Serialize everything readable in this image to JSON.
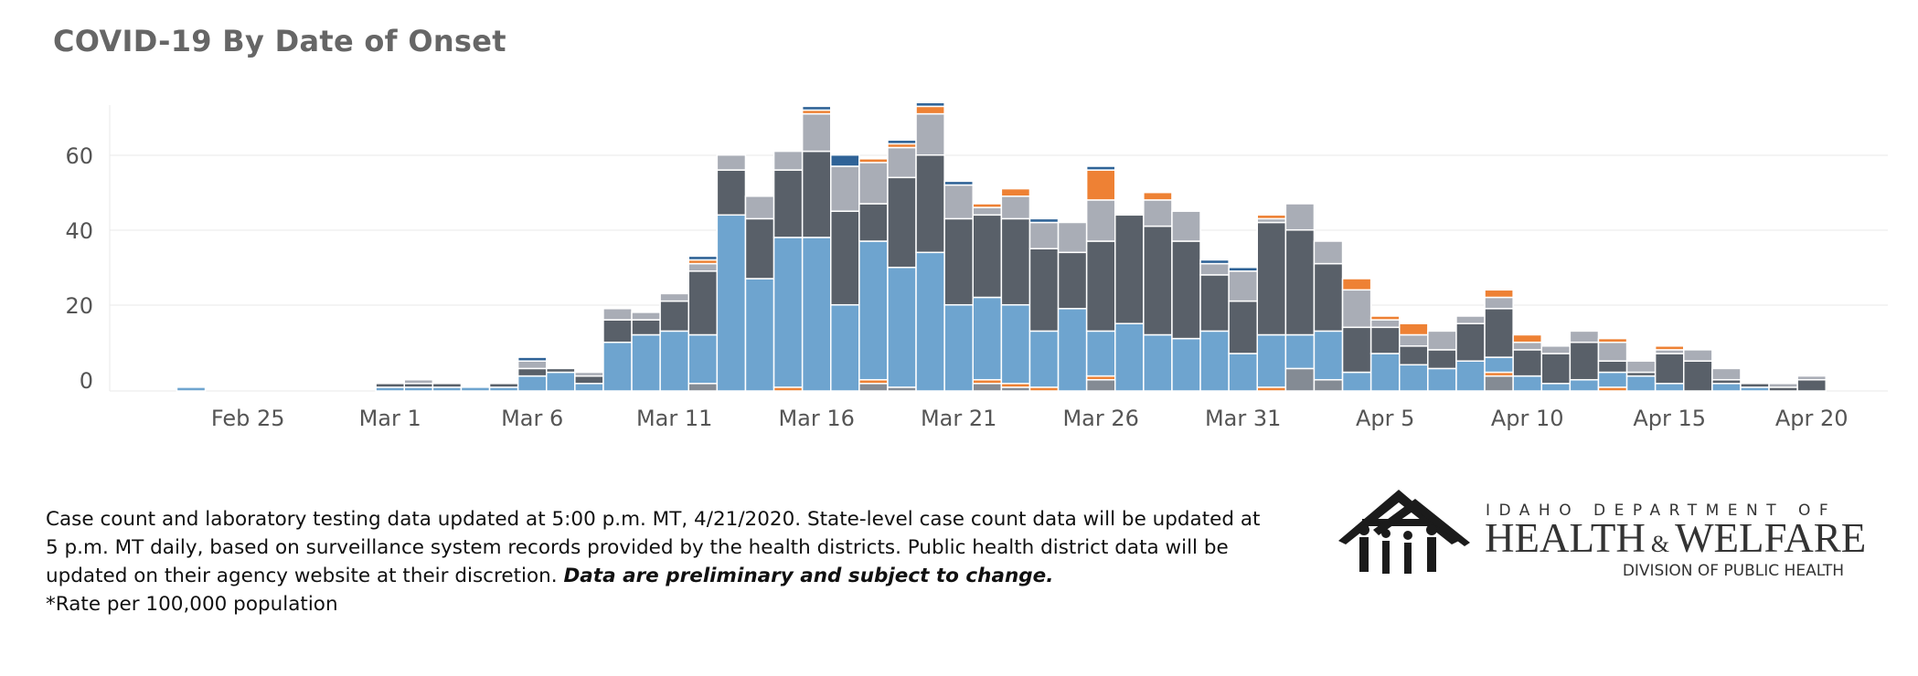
{
  "title": "COVID-19 By Date of Onset",
  "colors": {
    "c1": "#6ea4cf",
    "c2": "#596069",
    "c3": "#a9adb6",
    "c4": "#ee8134",
    "c5": "#2f6397",
    "c6": "#848b94",
    "grid": "#eaeaea",
    "bar_edge": "#ffffff"
  },
  "chart_data": {
    "type": "bar",
    "stacked": true,
    "title": "COVID-19 By Date of Onset",
    "xlabel": "",
    "ylabel": "",
    "ylim": [
      -5,
      75
    ],
    "yticks": [
      0,
      20,
      40,
      60
    ],
    "grid": true,
    "legend": "none",
    "x_tick_labels": [
      "Feb 25",
      "Mar 1",
      "Mar 6",
      "Mar 11",
      "Mar 16",
      "Mar 21",
      "Mar 26",
      "Mar 31",
      "Apr 5",
      "Apr 10",
      "Apr 15",
      "Apr 20"
    ],
    "categories": [
      "Feb 23",
      "Feb 24",
      "Feb 25",
      "Feb 26",
      "Feb 27",
      "Feb 28",
      "Feb 29",
      "Mar 1",
      "Mar 2",
      "Mar 3",
      "Mar 4",
      "Mar 5",
      "Mar 6",
      "Mar 7",
      "Mar 8",
      "Mar 9",
      "Mar 10",
      "Mar 11",
      "Mar 12",
      "Mar 13",
      "Mar 14",
      "Mar 15",
      "Mar 16",
      "Mar 17",
      "Mar 18",
      "Mar 19",
      "Mar 20",
      "Mar 21",
      "Mar 22",
      "Mar 23",
      "Mar 24",
      "Mar 25",
      "Mar 26",
      "Mar 27",
      "Mar 28",
      "Mar 29",
      "Mar 30",
      "Mar 31",
      "Apr 1",
      "Apr 2",
      "Apr 3",
      "Apr 4",
      "Apr 5",
      "Apr 6",
      "Apr 7",
      "Apr 8",
      "Apr 9",
      "Apr 10",
      "Apr 11",
      "Apr 12",
      "Apr 13",
      "Apr 14",
      "Apr 15",
      "Apr 16",
      "Apr 17",
      "Apr 18",
      "Apr 19",
      "Apr 20"
    ],
    "series": [
      {
        "color": "c6",
        "values": [
          0,
          0,
          0,
          0,
          0,
          0,
          0,
          0,
          0,
          0,
          0,
          0,
          0,
          0,
          0,
          0,
          0,
          0,
          2,
          0,
          0,
          0,
          0,
          0,
          2,
          1,
          0,
          0,
          2,
          1,
          0,
          0,
          3,
          0,
          0,
          0,
          0,
          0,
          0,
          6,
          3,
          0,
          0,
          0,
          0,
          0,
          4,
          0,
          0,
          0,
          0,
          0,
          0,
          0,
          0,
          0,
          0,
          0
        ]
      },
      {
        "color": "c4",
        "values": [
          0,
          0,
          0,
          0,
          0,
          0,
          0,
          0,
          0,
          0,
          0,
          0,
          0,
          0,
          0,
          0,
          0,
          0,
          0,
          0,
          0,
          1,
          0,
          0,
          1,
          0,
          0,
          0,
          1,
          1,
          1,
          0,
          1,
          0,
          0,
          0,
          0,
          0,
          1,
          0,
          0,
          0,
          0,
          0,
          0,
          0,
          1,
          0,
          0,
          0,
          1,
          0,
          0,
          0,
          0,
          0,
          0,
          0
        ]
      },
      {
        "color": "c1",
        "values": [
          1,
          0,
          0,
          0,
          0,
          0,
          0,
          1,
          1,
          1,
          1,
          1,
          4,
          5,
          2,
          13,
          15,
          16,
          13,
          47,
          30,
          40,
          41,
          23,
          37,
          32,
          37,
          23,
          22,
          21,
          15,
          22,
          12,
          18,
          15,
          14,
          16,
          10,
          14,
          9,
          13,
          5,
          10,
          7,
          6,
          8,
          4,
          4,
          2,
          3,
          4,
          4,
          2,
          0,
          2,
          1,
          0,
          0
        ]
      },
      {
        "color": "c2",
        "values": [
          0,
          0,
          0,
          0,
          0,
          0,
          0,
          1,
          1,
          1,
          0,
          1,
          2,
          1,
          2,
          6,
          4,
          8,
          17,
          12,
          16,
          18,
          23,
          25,
          10,
          24,
          26,
          23,
          22,
          23,
          22,
          15,
          24,
          29,
          29,
          26,
          15,
          14,
          30,
          28,
          18,
          12,
          7,
          5,
          5,
          10,
          13,
          7,
          8,
          10,
          3,
          1,
          8,
          8,
          1,
          1,
          1,
          3
        ]
      },
      {
        "color": "c3",
        "values": [
          0,
          0,
          0,
          0,
          0,
          0,
          0,
          0,
          1,
          0,
          0,
          0,
          2,
          0,
          1,
          3,
          2,
          2,
          2,
          4,
          6,
          5,
          10,
          12,
          11,
          8,
          11,
          9,
          2,
          6,
          7,
          8,
          11,
          0,
          7,
          8,
          3,
          8,
          1,
          7,
          6,
          10,
          2,
          3,
          5,
          2,
          3,
          2,
          2,
          3,
          5,
          3,
          1,
          3,
          3,
          0,
          1,
          1
        ]
      },
      {
        "color": "c4",
        "values": [
          0,
          0,
          0,
          0,
          0,
          0,
          0,
          0,
          0,
          0,
          0,
          0,
          0,
          0,
          0,
          0,
          0,
          0,
          1,
          0,
          0,
          0,
          1,
          0,
          1,
          1,
          2,
          0,
          1,
          2,
          0,
          0,
          8,
          0,
          2,
          0,
          0,
          0,
          1,
          0,
          0,
          3,
          1,
          3,
          0,
          0,
          2,
          2,
          0,
          0,
          1,
          0,
          1,
          0,
          0,
          0,
          0,
          0
        ]
      },
      {
        "color": "c5",
        "values": [
          0,
          0,
          0,
          0,
          0,
          0,
          0,
          0,
          0,
          0,
          0,
          0,
          1,
          0,
          0,
          0,
          0,
          0,
          1,
          0,
          0,
          0,
          1,
          3,
          0,
          1,
          1,
          1,
          0,
          0,
          1,
          0,
          1,
          0,
          0,
          0,
          1,
          1,
          0,
          0,
          0,
          0,
          0,
          0,
          0,
          0,
          0,
          0,
          0,
          0,
          0,
          0,
          0,
          0,
          0,
          0,
          0,
          0
        ]
      }
    ]
  },
  "footnote": {
    "line1": "Case count and laboratory testing data updated at 5:00 p.m. MT, 4/21/2020. State-level case count data will be updated at",
    "line2": "5 p.m. MT daily, based on surveillance system records provided by the health districts. Public health district data will be",
    "line3": "updated on their agency website at their discretion. ",
    "emphasis": "Data are preliminary and subject to change.",
    "line4": "*Rate per 100,000 population"
  },
  "logo": {
    "line1": "IDAHO DEPARTMENT OF",
    "line2_a": "HEALTH",
    "line2_amp": "&",
    "line2_b": "WELFARE",
    "line3": "DIVISION OF PUBLIC HEALTH"
  }
}
